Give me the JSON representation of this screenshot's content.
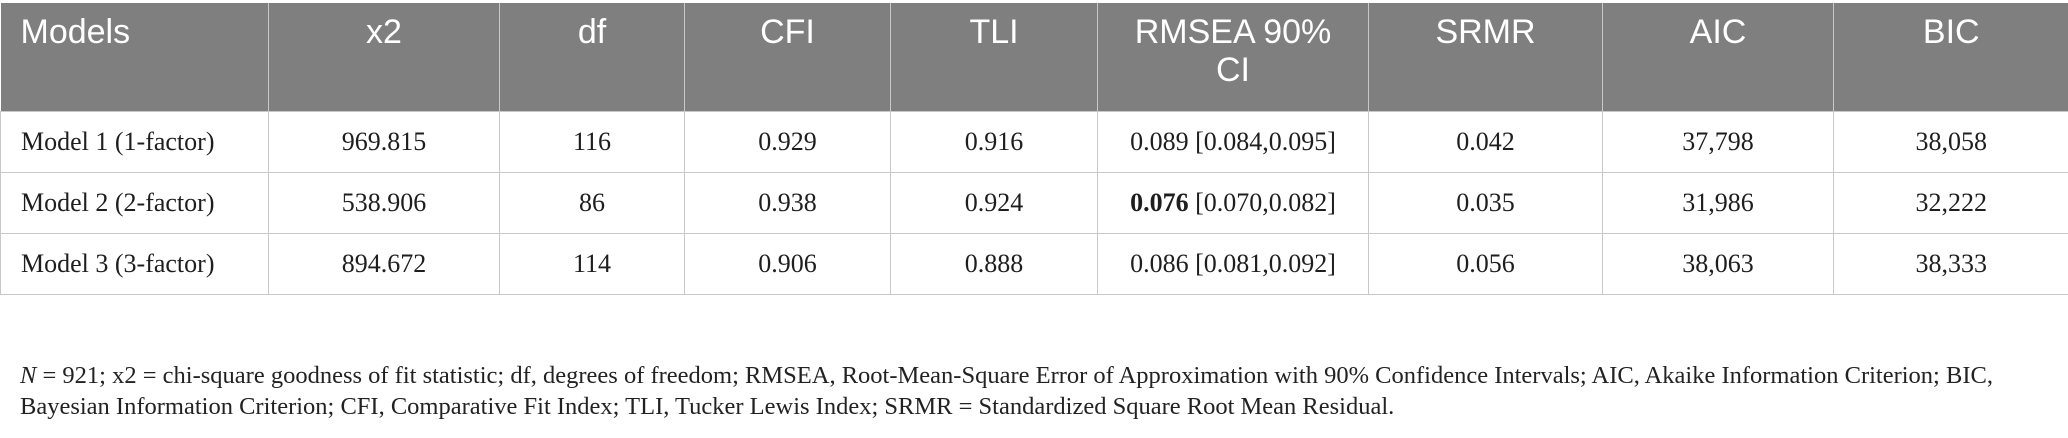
{
  "table": {
    "headers": [
      "Models",
      "x2",
      "df",
      "CFI",
      "TLI",
      "RMSEA 90% CI",
      "SRMR",
      "AIC",
      "BIC"
    ],
    "rows": [
      {
        "model": "Model 1 (1-factor)",
        "x2": "969.815",
        "df": "116",
        "cfi": "0.929",
        "tli": "0.916",
        "rmsea_value": "0.089",
        "rmsea_ci": " [0.084,0.095]",
        "srmr": "0.042",
        "aic": "37,798",
        "bic": "38,058"
      },
      {
        "model": "Model 2 (2-factor)",
        "x2": "538.906",
        "df": "86",
        "cfi": "0.938",
        "tli": "0.924",
        "rmsea_value": "0.076",
        "rmsea_ci": " [0.070,0.082]",
        "srmr": "0.035",
        "aic": "31,986",
        "bic": "32,222"
      },
      {
        "model": "Model 3 (3-factor)",
        "x2": "894.672",
        "df": "114",
        "cfi": "0.906",
        "tli": "0.888",
        "rmsea_value": "0.086",
        "rmsea_ci": " [0.081,0.092]",
        "srmr": "0.056",
        "aic": "38,063",
        "bic": "38,333"
      }
    ]
  },
  "note": {
    "n_label": "N",
    "text": " = 921; x2 = chi-square goodness of fit statistic; df, degrees of freedom; RMSEA, Root-Mean-Square Error of Approximation with 90% Confidence Intervals; AIC, Akaike Information Criterion; BIC, Bayesian Information Criterion; CFI, Comparative Fit Index; TLI, Tucker Lewis Index; SRMR = Standardized Square Root Mean Residual."
  },
  "colors": {
    "header_bg": "#7f7f7f",
    "header_text": "#ffffff",
    "border": "#c8c8c8"
  }
}
